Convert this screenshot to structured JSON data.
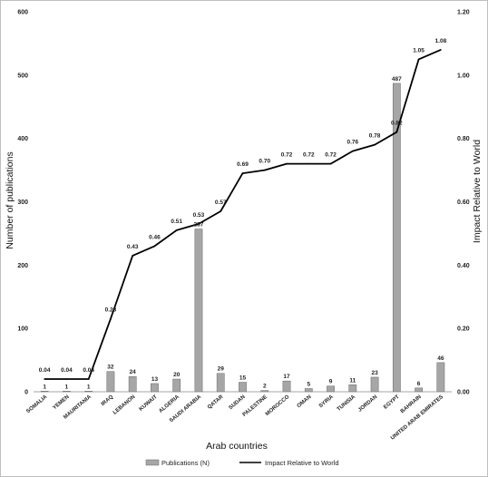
{
  "chart_data": {
    "type": "bar",
    "title": "",
    "xlabel": "Arab countries",
    "ylabel": "Number of publications",
    "y2label": "Impact Relative to World",
    "ylim": [
      0,
      600
    ],
    "y2lim": [
      0,
      1.2
    ],
    "yticks": [
      "0",
      "100",
      "200",
      "300",
      "400",
      "500",
      "600"
    ],
    "y2ticks": [
      "0.00",
      "0.20",
      "0.40",
      "0.60",
      "0.80",
      "1.00",
      "1.20"
    ],
    "categories": [
      "SOMALIA",
      "YEMEN",
      "MAURITANIA",
      "IRAQ",
      "LEBANON",
      "KUWAIT",
      "ALGERIA",
      "SAUDI ARABIA",
      "QATAR",
      "SUDAN",
      "PALESTINE",
      "MOROCCO",
      "OMAN",
      "SYRIA",
      "TUNISIA",
      "JORDAN",
      "EGYPT",
      "BAHRAIN",
      "UNITED ARAB EMIRATES"
    ],
    "series": [
      {
        "name": "Publications (N)",
        "kind": "bar",
        "axis": "left",
        "color": "#a6a6a6",
        "values": [
          1,
          1,
          1,
          32,
          24,
          13,
          20,
          257,
          29,
          15,
          2,
          17,
          5,
          9,
          11,
          23,
          487,
          6,
          46
        ],
        "labels": [
          "1",
          "1",
          "1",
          "32",
          "24",
          "13",
          "20",
          "257",
          "29",
          "15",
          "2",
          "17",
          "5",
          "9",
          "11",
          "23",
          "487",
          "6",
          "46"
        ]
      },
      {
        "name": "Impact Relative to World",
        "kind": "line",
        "axis": "right",
        "color": "#000000",
        "values": [
          0.04,
          0.04,
          0.04,
          0.23,
          0.43,
          0.46,
          0.51,
          0.53,
          0.57,
          0.69,
          0.7,
          0.72,
          0.72,
          0.72,
          0.76,
          0.78,
          0.82,
          1.05,
          1.08
        ],
        "labels": [
          "0.04",
          "0.04",
          "0.04",
          "0.23",
          "0.43",
          "0.46",
          "0.51",
          "0.53",
          "0.57",
          "0.69",
          "0.70",
          "0.72",
          "0.72",
          "0.72",
          "0.76",
          "0.78",
          "0.82",
          "1.05",
          "1.08"
        ]
      }
    ],
    "legend_position": "bottom",
    "grid": false
  }
}
